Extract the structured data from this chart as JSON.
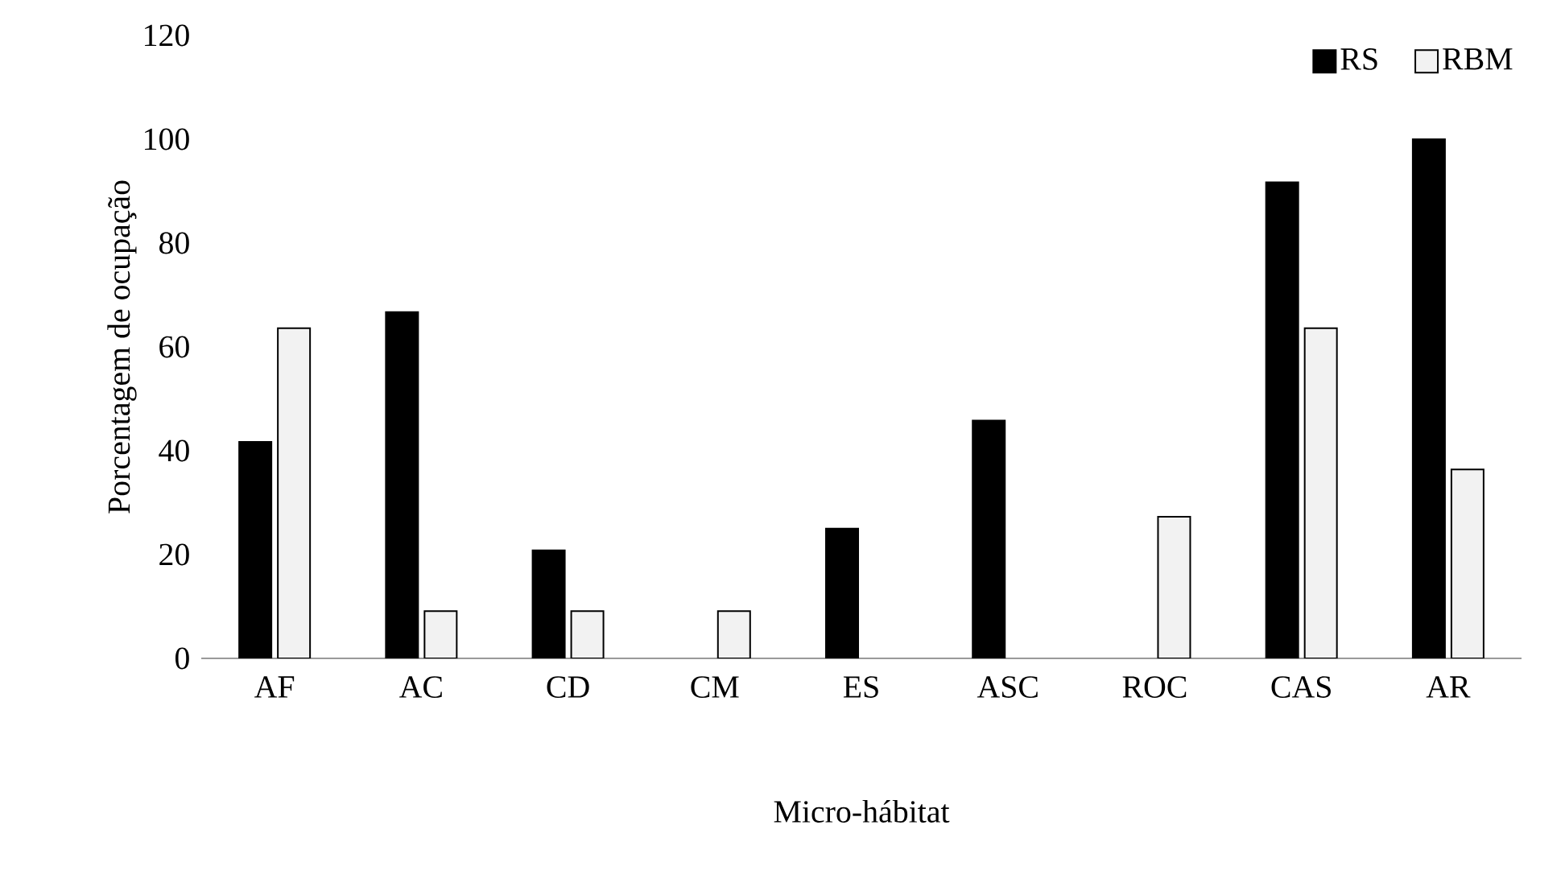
{
  "chart_data": {
    "type": "bar",
    "xlabel": "Micro-hábitat",
    "ylabel": "Porcentagem de ocupação",
    "categories": [
      "AF",
      "AC",
      "CD",
      "CM",
      "ES",
      "ASC",
      "ROC",
      "CAS",
      "AR"
    ],
    "series": [
      {
        "name": "RS",
        "color": "#000000",
        "values": [
          41.7,
          66.7,
          20.8,
          0,
          25,
          45.8,
          0,
          91.7,
          100
        ]
      },
      {
        "name": "RBM",
        "color": "#f2f2f2",
        "values": [
          63.6,
          9.1,
          9.1,
          9.1,
          0,
          0,
          27.3,
          63.6,
          36.4
        ]
      }
    ],
    "ylim": [
      0,
      120
    ],
    "yticks": [
      0,
      20,
      40,
      60,
      80,
      100,
      120
    ],
    "grid": false,
    "legend": "top right"
  }
}
